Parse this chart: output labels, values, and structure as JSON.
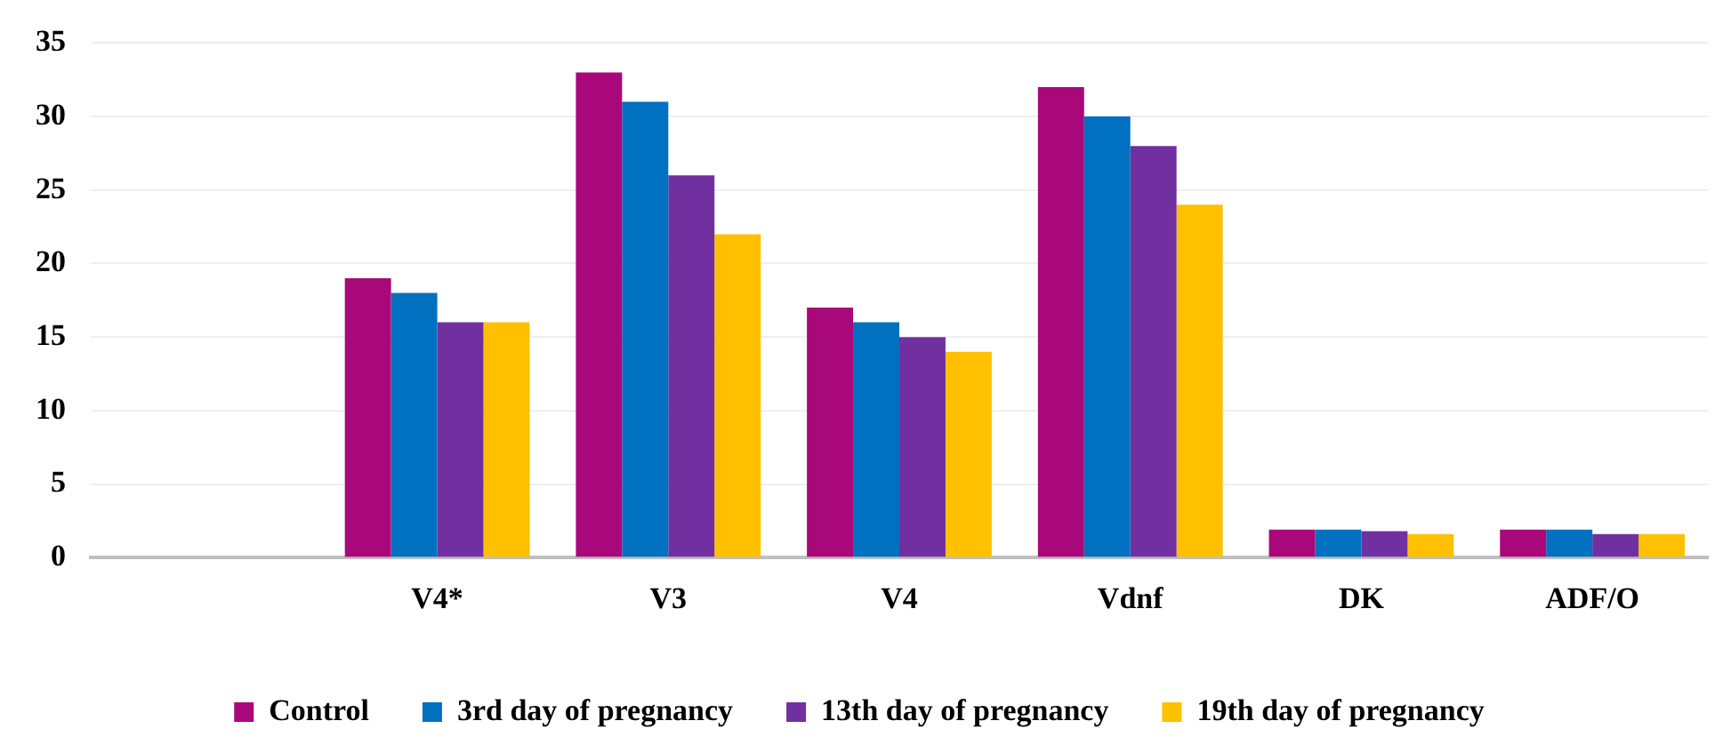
{
  "chart_data": {
    "type": "bar",
    "categories": [
      null,
      "V4*",
      "V3",
      "V4",
      "Vdnf",
      "DK",
      "ADF/O"
    ],
    "series": [
      {
        "name": "Control",
        "color": "#a8087a",
        "values": [
          null,
          19,
          33,
          17,
          32,
          1.9,
          1.9
        ]
      },
      {
        "name": "3rd day of pregnancy",
        "color": "#0070c0",
        "values": [
          null,
          18,
          31,
          16,
          30,
          1.9,
          1.9
        ]
      },
      {
        "name": "13th day of pregnancy",
        "color": "#7030a0",
        "values": [
          null,
          16,
          26,
          15,
          28,
          1.8,
          1.6
        ]
      },
      {
        "name": "19th day of pregnancy",
        "color": "#ffc000",
        "values": [
          null,
          16,
          22,
          14,
          24,
          1.6,
          1.6
        ]
      }
    ],
    "ylim": [
      0,
      35
    ],
    "yticks": [
      0,
      5,
      10,
      15,
      20,
      25,
      30,
      35
    ],
    "grid": "y",
    "legend": "bottom"
  }
}
